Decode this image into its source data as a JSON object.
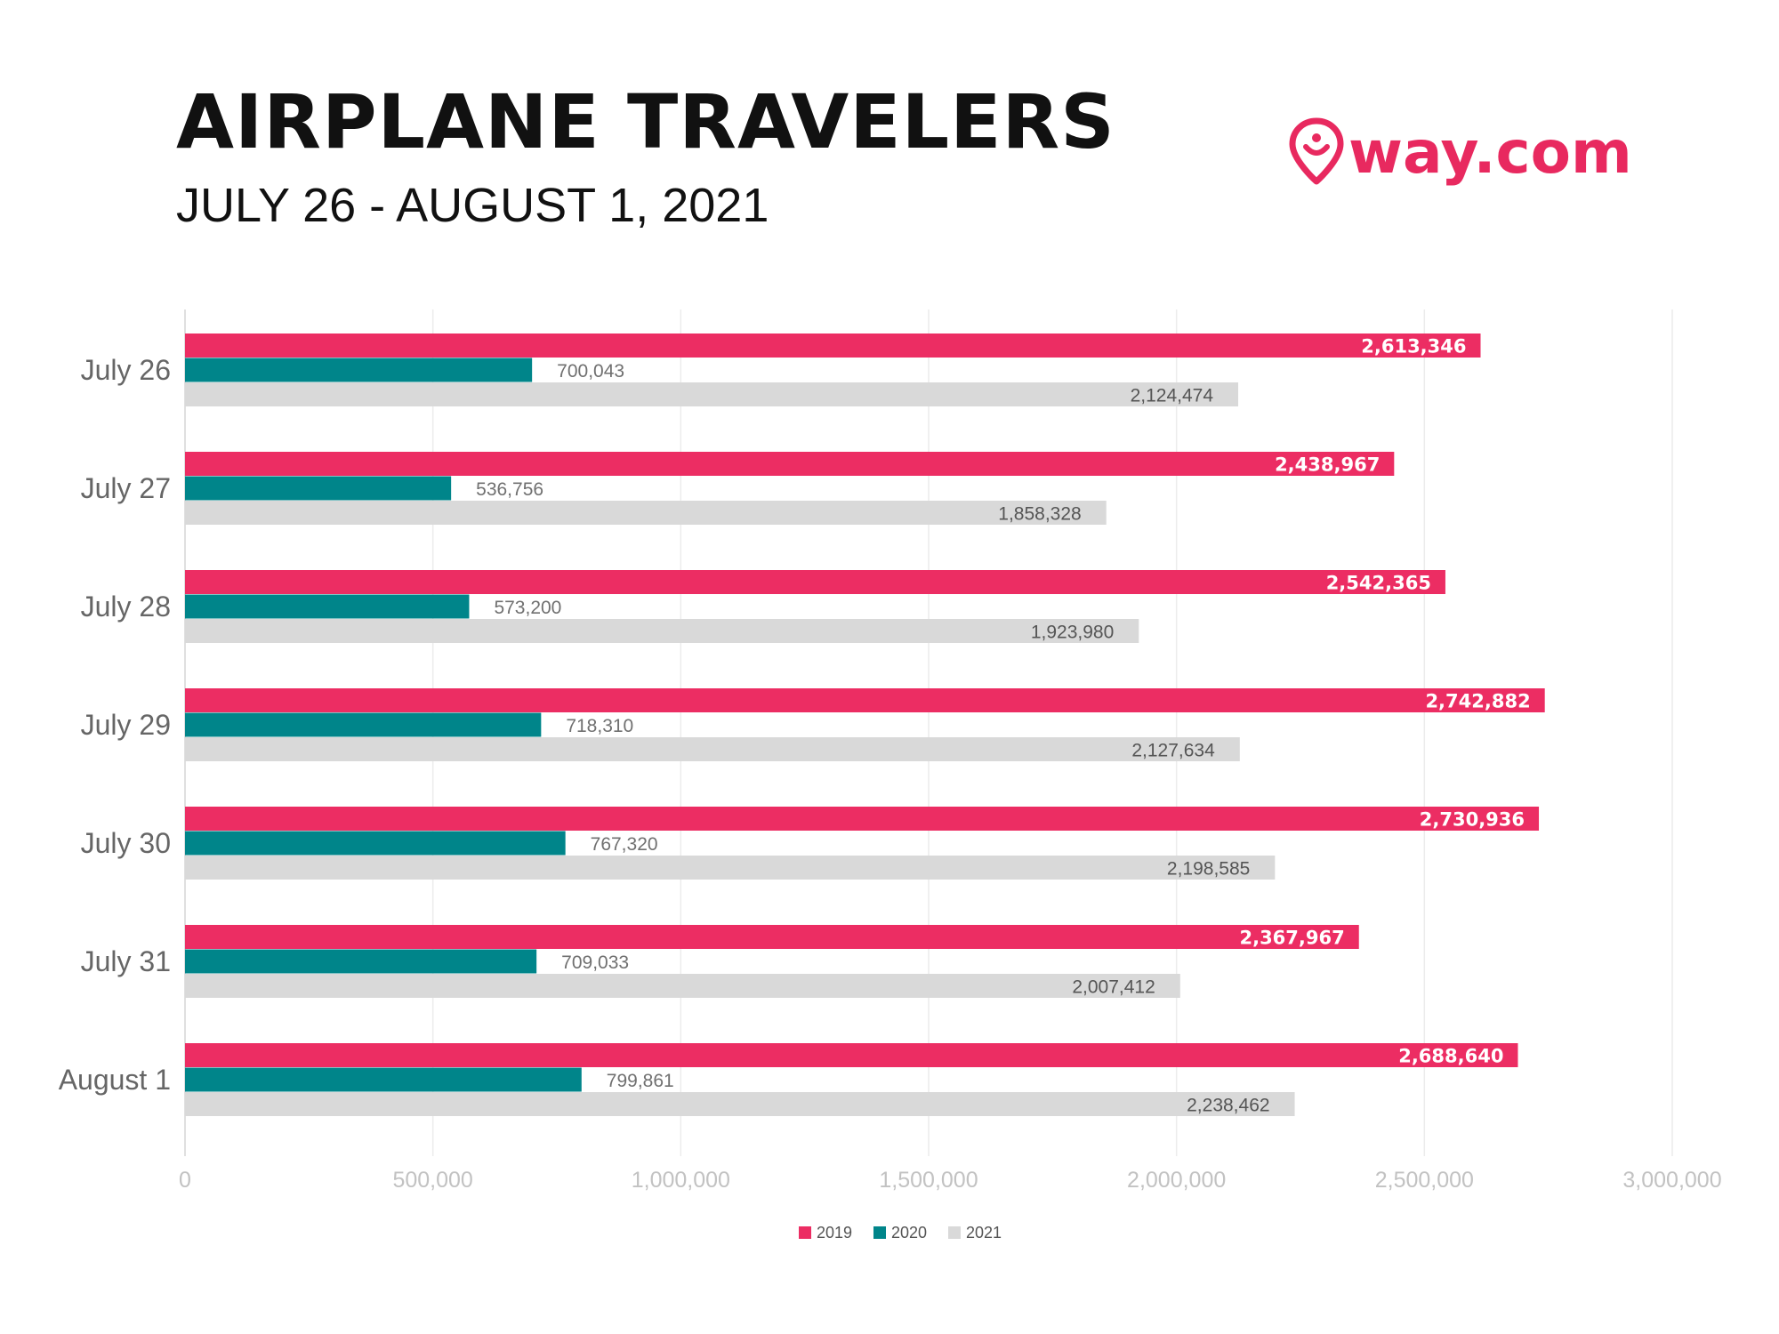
{
  "header": {
    "title": "AIRPLANE TRAVELERS",
    "subtitle": "JULY 26 - AUGUST 1, 2021",
    "logo_text": "way.com",
    "brand_color": "#E8295F"
  },
  "chart_data": {
    "type": "bar",
    "orientation": "horizontal",
    "categories": [
      "July 26",
      "July 27",
      "July 28",
      "July 29",
      "July 30",
      "July 31",
      "August 1"
    ],
    "series": [
      {
        "name": "2019",
        "color": "#EC2D63",
        "values": [
          2613346,
          2438967,
          2542365,
          2742882,
          2730936,
          2367967,
          2688640
        ],
        "labels": [
          "2,613,346",
          "2,438,967",
          "2,542,365",
          "2,742,882",
          "2,730,936",
          "2,367,967",
          "2,688,640"
        ]
      },
      {
        "name": "2020",
        "color": "#00858A",
        "values": [
          700043,
          536756,
          573200,
          718310,
          767320,
          709033,
          799861
        ],
        "labels": [
          "700,043",
          "536,756",
          "573,200",
          "718,310",
          "767,320",
          "709,033",
          "799,861"
        ]
      },
      {
        "name": "2021",
        "color": "#D9D9D9",
        "values": [
          2124474,
          1858328,
          1923980,
          2127634,
          2198585,
          2007412,
          2238462
        ],
        "labels": [
          "2,124,474",
          "1,858,328",
          "1,923,980",
          "2,127,634",
          "2,198,585",
          "2,007,412",
          "2,238,462"
        ]
      }
    ],
    "xlim": [
      0,
      3000000
    ],
    "x_ticks": [
      0,
      500000,
      1000000,
      1500000,
      2000000,
      2500000,
      3000000
    ],
    "x_tick_labels": [
      "0",
      "500,000",
      "1,000,000",
      "1,500,000",
      "2,000,000",
      "2,500,000",
      "3,000,000"
    ],
    "grid": true,
    "legend_position": "bottom-center"
  }
}
